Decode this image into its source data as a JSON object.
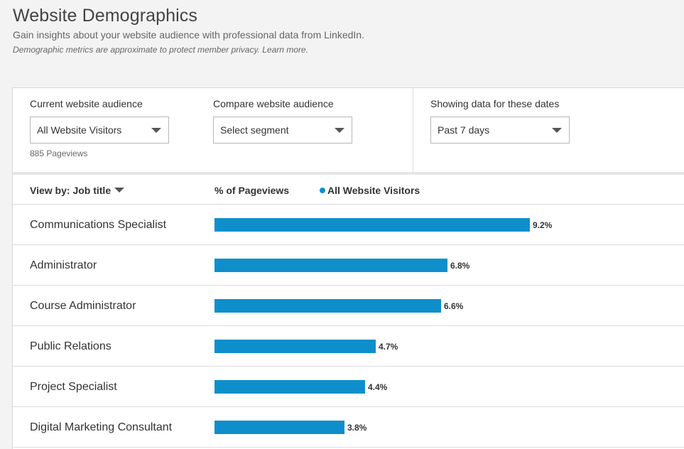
{
  "header": {
    "title": "Website Demographics",
    "subtitle": "Gain insights about your website audience with professional data from LinkedIn.",
    "note": "Demographic metrics are approximate to protect member privacy. Learn more."
  },
  "filters": {
    "current": {
      "label": "Current website audience",
      "value": "All Website Visitors",
      "pageviews": "885 Pageviews"
    },
    "compare": {
      "label": "Compare website audience",
      "value": "Select segment"
    },
    "dates": {
      "label": "Showing data for these dates",
      "value": "Past 7 days"
    }
  },
  "table": {
    "view_by_label": "View by:",
    "view_by_value": "Job title",
    "pct_header": "% of Pageviews",
    "legend": "All Website Visitors"
  },
  "colors": {
    "bar": "#0e8fcc"
  },
  "chart_data": {
    "type": "bar",
    "categories": [
      "Communications Specialist",
      "Administrator",
      "Course Administrator",
      "Public Relations",
      "Project Specialist",
      "Digital Marketing Consultant"
    ],
    "values": [
      9.2,
      6.8,
      6.6,
      4.7,
      4.4,
      3.8
    ],
    "value_labels": [
      "9.2%",
      "6.8%",
      "6.6%",
      "4.7%",
      "4.4%",
      "3.8%"
    ],
    "ylabel": "% of Pageviews",
    "series": [
      {
        "name": "All Website Visitors",
        "values": [
          9.2,
          6.8,
          6.6,
          4.7,
          4.4,
          3.8
        ]
      }
    ]
  }
}
